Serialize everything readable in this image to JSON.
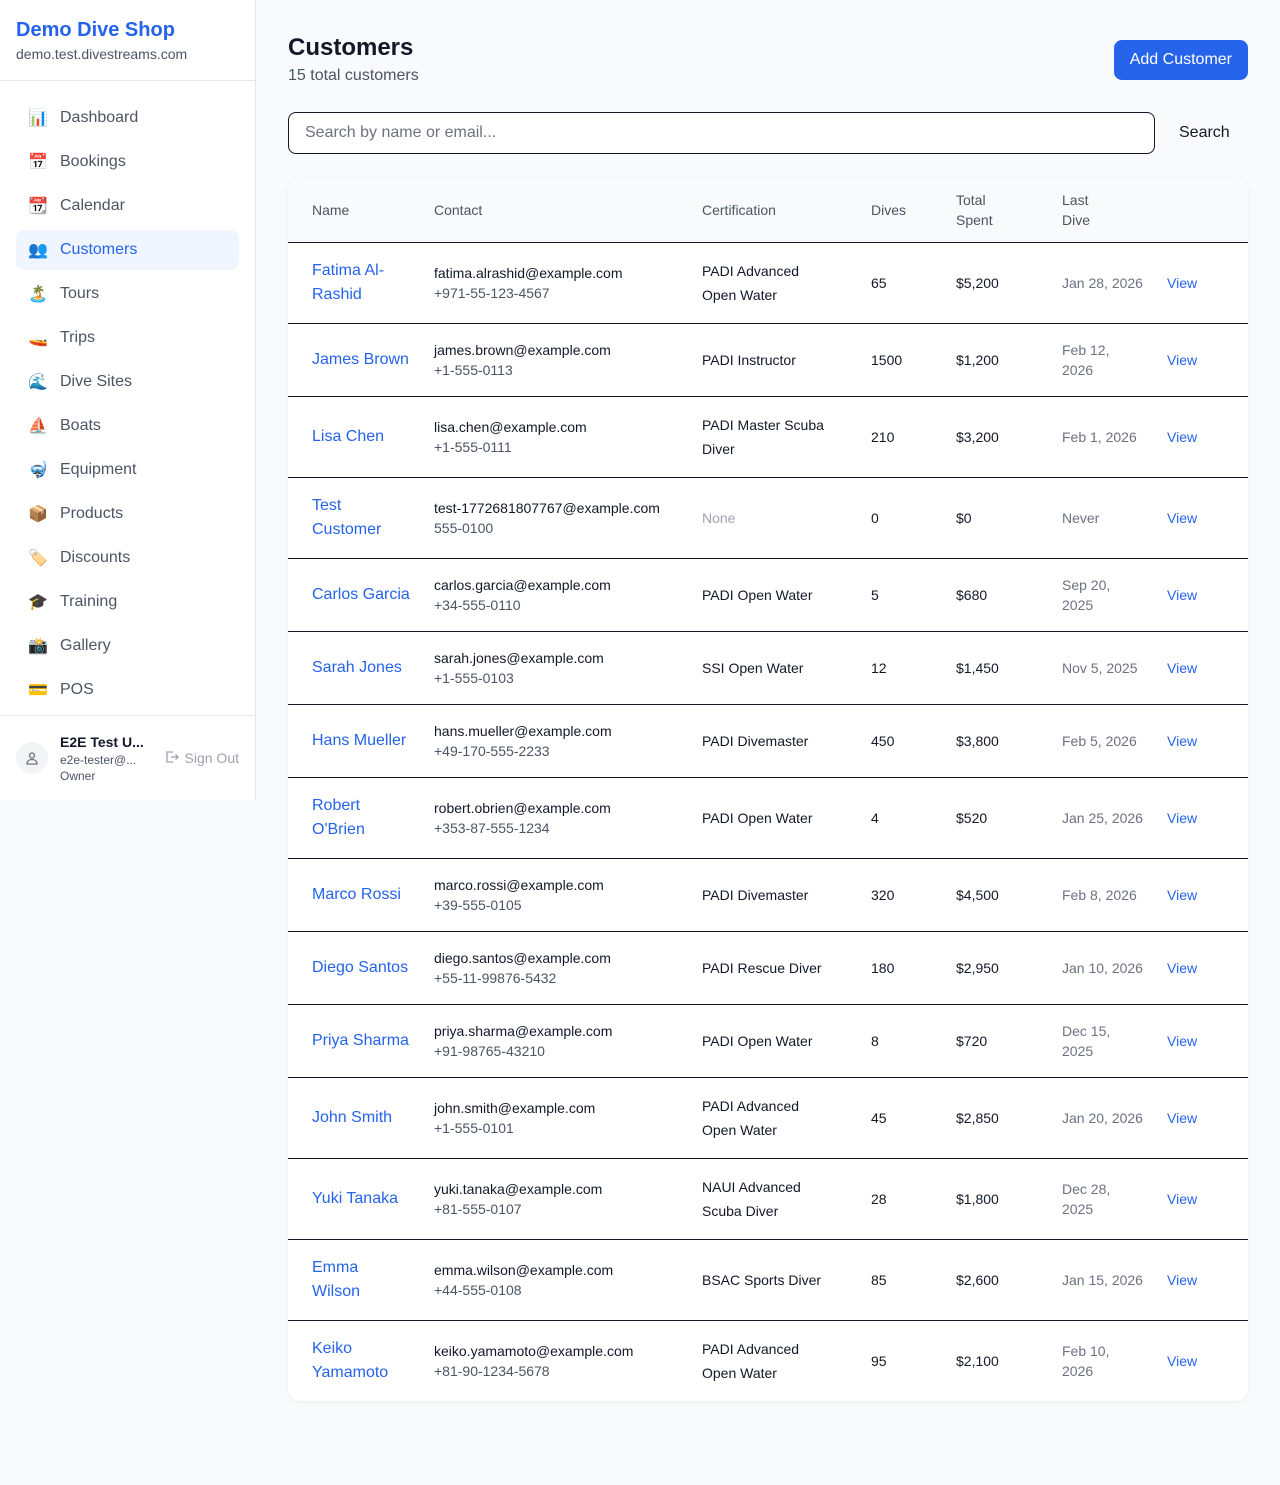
{
  "sidebar": {
    "brand": "Demo Dive Shop",
    "domain": "demo.test.divestreams.com",
    "items": [
      {
        "label": "Dashboard",
        "icon": "📊",
        "active": false
      },
      {
        "label": "Bookings",
        "icon": "📅",
        "active": false
      },
      {
        "label": "Calendar",
        "icon": "📆",
        "active": false
      },
      {
        "label": "Customers",
        "icon": "👥",
        "active": true
      },
      {
        "label": "Tours",
        "icon": "🏝️",
        "active": false
      },
      {
        "label": "Trips",
        "icon": "🚤",
        "active": false
      },
      {
        "label": "Dive Sites",
        "icon": "🌊",
        "active": false
      },
      {
        "label": "Boats",
        "icon": "⛵",
        "active": false
      },
      {
        "label": "Equipment",
        "icon": "🤿",
        "active": false
      },
      {
        "label": "Products",
        "icon": "📦",
        "active": false
      },
      {
        "label": "Discounts",
        "icon": "🏷️",
        "active": false
      },
      {
        "label": "Training",
        "icon": "🎓",
        "active": false
      },
      {
        "label": "Gallery",
        "icon": "📸",
        "active": false
      },
      {
        "label": "POS",
        "icon": "💳",
        "active": false
      }
    ],
    "user": {
      "name": "E2E Test U...",
      "email": "e2e-tester@...",
      "role": "Owner",
      "sign_out": "Sign Out"
    }
  },
  "header": {
    "title": "Customers",
    "subtitle": "15 total customers",
    "add_button": "Add Customer"
  },
  "search": {
    "placeholder": "Search by name or email...",
    "value": "",
    "button": "Search"
  },
  "table": {
    "columns": [
      "Name",
      "Contact",
      "Certification",
      "Dives",
      "Total Spent",
      "Last Dive",
      ""
    ],
    "view_label": "View",
    "rows": [
      {
        "name": "Fatima Al-Rashid",
        "email": "fatima.alrashid@example.com",
        "phone": "+971-55-123-4567",
        "cert": "PADI Advanced Open Water",
        "dives": "65",
        "spent": "$5,200",
        "last": "Jan 28, 2026"
      },
      {
        "name": "James Brown",
        "email": "james.brown@example.com",
        "phone": "+1-555-0113",
        "cert": "PADI Instructor",
        "dives": "1500",
        "spent": "$1,200",
        "last": "Feb 12, 2026"
      },
      {
        "name": "Lisa Chen",
        "email": "lisa.chen@example.com",
        "phone": "+1-555-0111",
        "cert": "PADI Master Scuba Diver",
        "dives": "210",
        "spent": "$3,200",
        "last": "Feb 1, 2026"
      },
      {
        "name": "Test Customer",
        "email": "test-1772681807767@example.com",
        "phone": "555-0100",
        "cert": "None",
        "dives": "0",
        "spent": "$0",
        "last": "Never"
      },
      {
        "name": "Carlos Garcia",
        "email": "carlos.garcia@example.com",
        "phone": "+34-555-0110",
        "cert": "PADI Open Water",
        "dives": "5",
        "spent": "$680",
        "last": "Sep 20, 2025"
      },
      {
        "name": "Sarah Jones",
        "email": "sarah.jones@example.com",
        "phone": "+1-555-0103",
        "cert": "SSI Open Water",
        "dives": "12",
        "spent": "$1,450",
        "last": "Nov 5, 2025"
      },
      {
        "name": "Hans Mueller",
        "email": "hans.mueller@example.com",
        "phone": "+49-170-555-2233",
        "cert": "PADI Divemaster",
        "dives": "450",
        "spent": "$3,800",
        "last": "Feb 5, 2026"
      },
      {
        "name": "Robert O'Brien",
        "email": "robert.obrien@example.com",
        "phone": "+353-87-555-1234",
        "cert": "PADI Open Water",
        "dives": "4",
        "spent": "$520",
        "last": "Jan 25, 2026"
      },
      {
        "name": "Marco Rossi",
        "email": "marco.rossi@example.com",
        "phone": "+39-555-0105",
        "cert": "PADI Divemaster",
        "dives": "320",
        "spent": "$4,500",
        "last": "Feb 8, 2026"
      },
      {
        "name": "Diego Santos",
        "email": "diego.santos@example.com",
        "phone": "+55-11-99876-5432",
        "cert": "PADI Rescue Diver",
        "dives": "180",
        "spent": "$2,950",
        "last": "Jan 10, 2026"
      },
      {
        "name": "Priya Sharma",
        "email": "priya.sharma@example.com",
        "phone": "+91-98765-43210",
        "cert": "PADI Open Water",
        "dives": "8",
        "spent": "$720",
        "last": "Dec 15, 2025"
      },
      {
        "name": "John Smith",
        "email": "john.smith@example.com",
        "phone": "+1-555-0101",
        "cert": "PADI Advanced Open Water",
        "dives": "45",
        "spent": "$2,850",
        "last": "Jan 20, 2026"
      },
      {
        "name": "Yuki Tanaka",
        "email": "yuki.tanaka@example.com",
        "phone": "+81-555-0107",
        "cert": "NAUI Advanced Scuba Diver",
        "dives": "28",
        "spent": "$1,800",
        "last": "Dec 28, 2025"
      },
      {
        "name": "Emma Wilson",
        "email": "emma.wilson@example.com",
        "phone": "+44-555-0108",
        "cert": "BSAC Sports Diver",
        "dives": "85",
        "spent": "$2,600",
        "last": "Jan 15, 2026"
      },
      {
        "name": "Keiko Yamamoto",
        "email": "keiko.yamamoto@example.com",
        "phone": "+81-90-1234-5678",
        "cert": "PADI Advanced Open Water",
        "dives": "95",
        "spent": "$2,100",
        "last": "Feb 10, 2026"
      }
    ]
  },
  "colors": {
    "accent": "#2563eb",
    "active_bg": "#eff6ff"
  }
}
